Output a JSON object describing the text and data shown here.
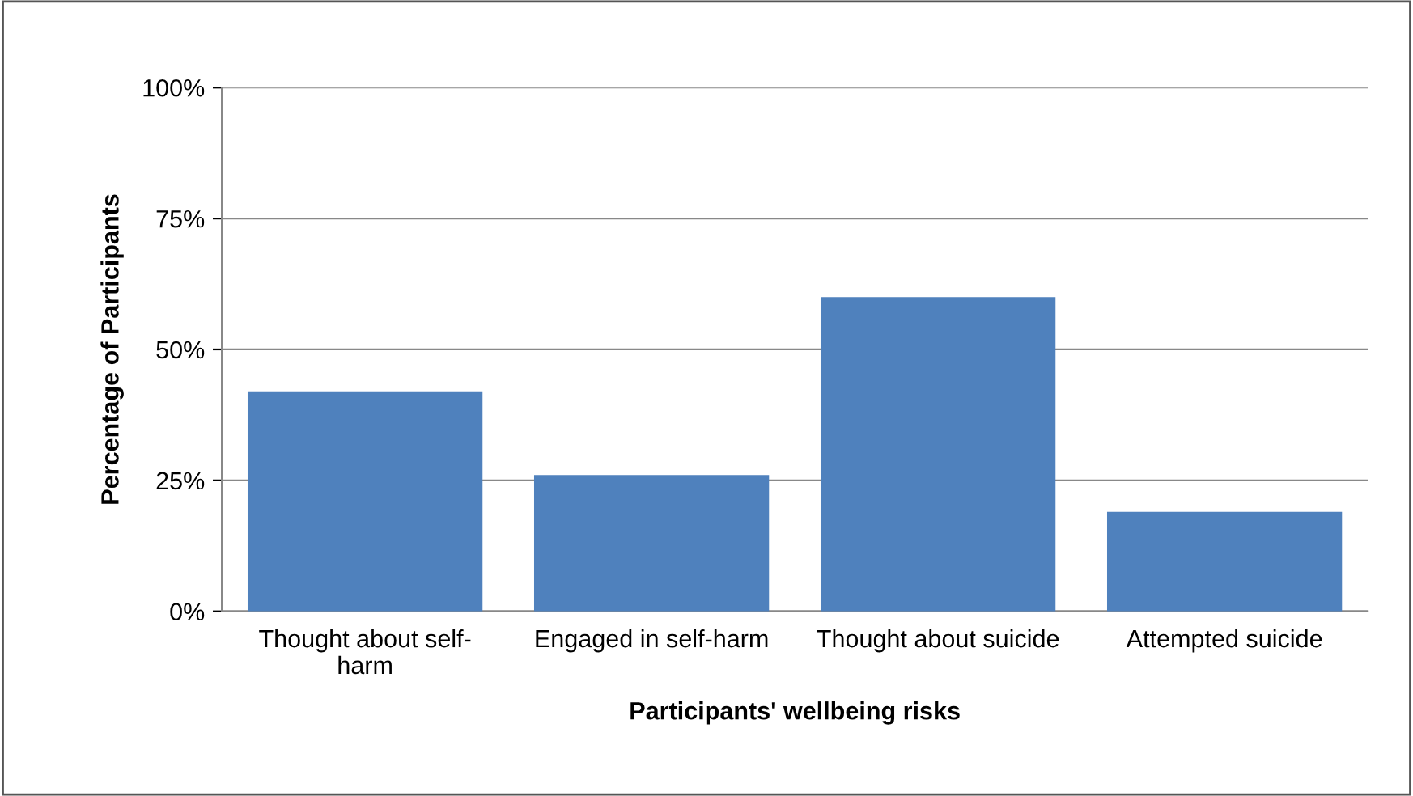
{
  "chart_data": {
    "type": "bar",
    "xlabel": "Participants' wellbeing risks",
    "ylabel": "Percentage of Participants",
    "categories": [
      "Thought about self-\nharm",
      "Engaged in self-harm",
      "Thought about suicide",
      "Attempted suicide"
    ],
    "values": [
      42,
      26,
      60,
      19
    ],
    "color": "#4f81bd",
    "ylim": [
      0,
      100
    ],
    "yticks": [
      {
        "value": 0,
        "label": "0%"
      },
      {
        "value": 25,
        "label": "25%"
      },
      {
        "value": 50,
        "label": "50%"
      },
      {
        "value": 75,
        "label": "75%"
      },
      {
        "value": 100,
        "label": "100%"
      }
    ],
    "grid": "y",
    "legend": false
  }
}
